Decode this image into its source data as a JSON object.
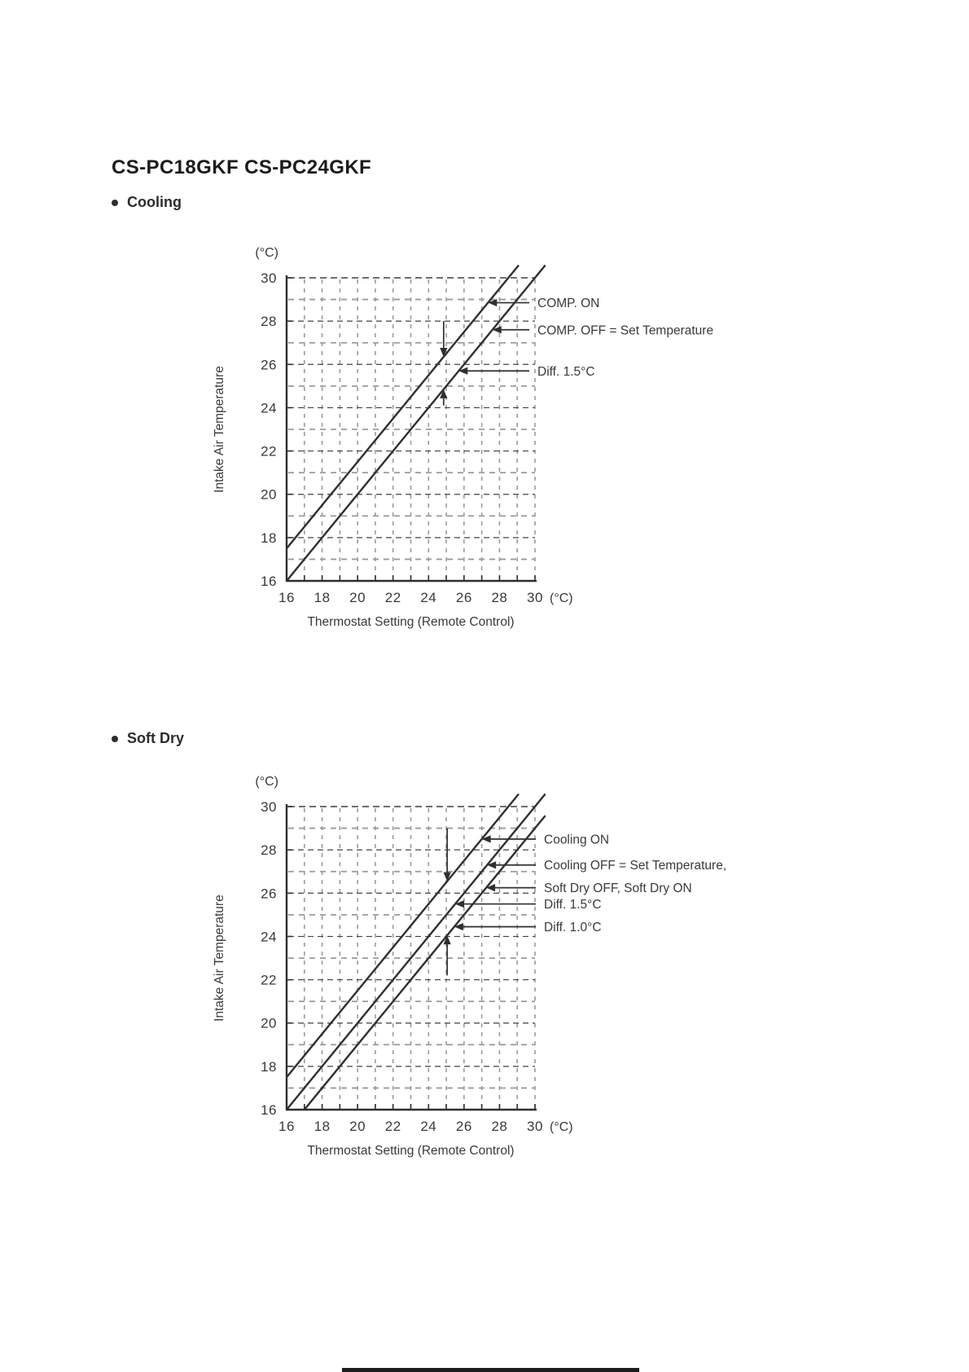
{
  "page": {
    "title": "CS-PC18GKF  CS-PC24GKF"
  },
  "sections": [
    {
      "bullet_label": "Cooling"
    },
    {
      "bullet_label": "Soft Dry"
    }
  ],
  "chart_data": [
    {
      "type": "line",
      "title": "Cooling",
      "xlabel": "Thermostat Setting (Remote Control)",
      "ylabel": "Intake Air Temperature",
      "x_unit": "(°C)",
      "y_unit": "(°C)",
      "xlim": [
        16,
        30
      ],
      "ylim": [
        16,
        30
      ],
      "x_ticks": [
        16,
        18,
        20,
        22,
        24,
        26,
        28,
        30
      ],
      "y_ticks": [
        30,
        28,
        26,
        24,
        22,
        20,
        18,
        16
      ],
      "minor_grid_step": 1,
      "grid": "dashed",
      "legend_position": "right-annotations",
      "series": [
        {
          "name": "COMP. ON",
          "relation": "y = x + 1.5",
          "points": [
            [
              16,
              17.5
            ],
            [
              28.5,
              30
            ]
          ]
        },
        {
          "name": "COMP. OFF = Set Temperature",
          "relation": "y = x",
          "points": [
            [
              16,
              16
            ],
            [
              30,
              30
            ]
          ]
        }
      ],
      "annotations": [
        {
          "label": "COMP. ON",
          "target_series": 0,
          "at_y": 28.85
        },
        {
          "label": "COMP. OFF = Set Temperature",
          "target_series": 1,
          "at_y": 27.6
        },
        {
          "label": "Diff. 1.5°C",
          "target_series": 1,
          "at_y": 25.7
        }
      ],
      "diff_marker": {
        "x": 24.85,
        "segments": [
          {
            "tail_y": 28.0,
            "tip_y": 26.35,
            "arrow": "down"
          },
          {
            "tail_y": 24.1,
            "tip_y": 24.85,
            "arrow": "up"
          }
        ]
      }
    },
    {
      "type": "line",
      "title": "Soft Dry",
      "xlabel": "Thermostat Setting (Remote Control)",
      "ylabel": "Intake Air Temperature",
      "x_unit": "(°C)",
      "y_unit": "(°C)",
      "xlim": [
        16,
        30
      ],
      "ylim": [
        16,
        30
      ],
      "x_ticks": [
        16,
        18,
        20,
        22,
        24,
        26,
        28,
        30
      ],
      "y_ticks": [
        30,
        28,
        26,
        24,
        22,
        20,
        18,
        16
      ],
      "minor_grid_step": 1,
      "grid": "dashed",
      "legend_position": "right-annotations",
      "series": [
        {
          "name": "Cooling ON",
          "relation": "y = x + 1.5",
          "points": [
            [
              16,
              17.5
            ],
            [
              28.5,
              30
            ]
          ]
        },
        {
          "name": "Cooling OFF = Set Temperature, Soft Dry ON",
          "relation": "y = x",
          "points": [
            [
              16,
              16
            ],
            [
              30,
              30
            ]
          ]
        },
        {
          "name": "Soft Dry OFF",
          "relation": "y = x - 1.0",
          "points": [
            [
              17,
              16
            ],
            [
              30,
              29
            ]
          ]
        }
      ],
      "annotations": [
        {
          "label": "Cooling ON",
          "target_series": 0,
          "at_y": 28.5
        },
        {
          "label": "Cooling OFF = Set Temperature,",
          "target_series": 1,
          "at_y": 27.3
        },
        {
          "label": "Soft Dry OFF, Soft Dry ON",
          "target_series": 2,
          "at_y": 26.25
        },
        {
          "label": "Diff. 1.5°C",
          "target_series": 1,
          "at_y": 25.5
        },
        {
          "label": "Diff. 1.0°C",
          "target_series": 2,
          "at_y": 24.45
        }
      ],
      "diff_marker": {
        "x": 25.05,
        "segments": [
          {
            "tail_y": 29.0,
            "tip_y": 26.55,
            "arrow": "down"
          },
          {
            "tail_y": 22.2,
            "tip_y": 24.05,
            "arrow": "up"
          }
        ]
      }
    }
  ]
}
